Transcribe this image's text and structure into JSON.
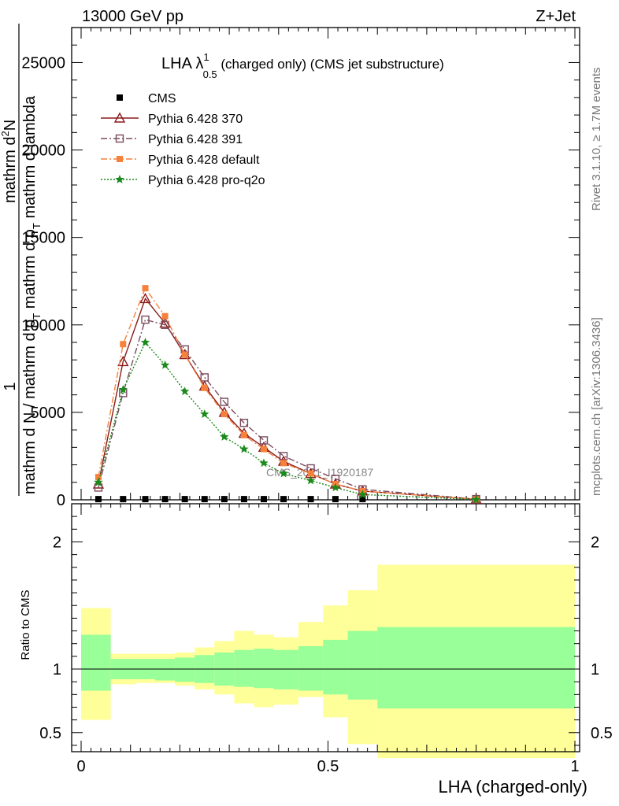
{
  "header": {
    "energy_label": "13000 GeV pp",
    "process_label": "Z+Jet",
    "title_main": "LHA λ",
    "title_sup": "1",
    "title_sub": "0.5",
    "title_rest": " (charged only) (CMS jet substructure)",
    "side_rivet": "Rivet 3.1.10, ≥ 1.7M events",
    "side_mcplots": "mcplots.cern.ch [arXiv:1306.3436]",
    "watermark": "CMS_2021_I1920187"
  },
  "colors": {
    "cms": "#000000",
    "p370": "#8b1a1a",
    "p391": "#7a4a5e",
    "pdefault": "#f5813c",
    "pq2o": "#1a8a1a",
    "band_inner": "#99ff99",
    "band_outer": "#ffff99"
  },
  "chart_data": [
    {
      "type": "line",
      "xlabel": "LHA (charged-only)",
      "ylabel_parts": [
        "1",
        "mathrm d N / mathrm d p",
        "T",
        " mathrm d p",
        "T",
        " mathrm d lambda",
        "mathrm d",
        "2",
        "N"
      ],
      "xlim": [
        0,
        1
      ],
      "ylim": [
        0,
        27000
      ],
      "yticks": [
        0,
        5000,
        10000,
        15000,
        20000,
        25000
      ],
      "ytick_labels": [
        "0",
        "5000",
        "10000",
        "15000",
        "20000",
        "25000"
      ],
      "legend_position": "top-left",
      "x": [
        0.035,
        0.085,
        0.13,
        0.17,
        0.21,
        0.25,
        0.29,
        0.33,
        0.37,
        0.41,
        0.465,
        0.515,
        0.57,
        0.8
      ],
      "series": [
        {
          "name": "CMS",
          "key": "cms",
          "marker": "square",
          "values": [
            40,
            40,
            40,
            40,
            40,
            40,
            40,
            40,
            40,
            40,
            40,
            40,
            40,
            40
          ]
        },
        {
          "name": "Pythia 6.428 370",
          "key": "p370",
          "marker": "triangle-open",
          "dash": "",
          "values": [
            900,
            7900,
            11500,
            10100,
            8300,
            6500,
            5000,
            3800,
            3000,
            2200,
            1500,
            900,
            500,
            30
          ]
        },
        {
          "name": "Pythia 6.428 391",
          "key": "p391",
          "marker": "square-open",
          "dash": "8,3,2,3",
          "values": [
            700,
            6100,
            10300,
            10000,
            8600,
            7000,
            5600,
            4400,
            3400,
            2500,
            1800,
            1200,
            600,
            40
          ]
        },
        {
          "name": "Pythia 6.428 default",
          "key": "pdefault",
          "marker": "square",
          "dash": "8,3,2,3",
          "values": [
            1300,
            8900,
            12100,
            10500,
            8300,
            6400,
            4900,
            3700,
            2900,
            2100,
            1500,
            900,
            500,
            30
          ]
        },
        {
          "name": "Pythia 6.428 pro-q2o",
          "key": "pq2o",
          "marker": "star",
          "dash": "2,2",
          "values": [
            1000,
            6300,
            9000,
            7700,
            6200,
            4900,
            3600,
            2900,
            2100,
            1500,
            1100,
            700,
            300,
            20
          ]
        }
      ]
    },
    {
      "type": "area",
      "ylabel": "Ratio to CMS",
      "xlim": [
        0,
        1
      ],
      "ylim": [
        0.35,
        2.3
      ],
      "yticks": [
        0.5,
        1,
        2
      ],
      "ytick_labels": [
        "0.5",
        "1",
        "2"
      ],
      "xticks": [
        0,
        0.5,
        1
      ],
      "xtick_labels": [
        "0",
        "0.5",
        "1"
      ],
      "bins": [
        0,
        0.06,
        0.11,
        0.15,
        0.19,
        0.23,
        0.27,
        0.31,
        0.35,
        0.39,
        0.44,
        0.49,
        0.54,
        0.6,
        1.0
      ],
      "inner_lo": [
        0.83,
        0.92,
        0.92,
        0.91,
        0.9,
        0.89,
        0.87,
        0.86,
        0.85,
        0.84,
        0.83,
        0.8,
        0.76,
        0.69
      ],
      "inner_hi": [
        1.27,
        1.08,
        1.08,
        1.08,
        1.09,
        1.11,
        1.13,
        1.15,
        1.16,
        1.15,
        1.18,
        1.23,
        1.3,
        1.33
      ],
      "outer_lo": [
        0.6,
        0.88,
        0.89,
        0.89,
        0.87,
        0.84,
        0.8,
        0.73,
        0.7,
        0.72,
        0.78,
        0.62,
        0.41,
        0.3
      ],
      "outer_hi": [
        1.48,
        1.12,
        1.12,
        1.12,
        1.13,
        1.17,
        1.22,
        1.3,
        1.27,
        1.25,
        1.37,
        1.5,
        1.62,
        1.82
      ]
    }
  ]
}
